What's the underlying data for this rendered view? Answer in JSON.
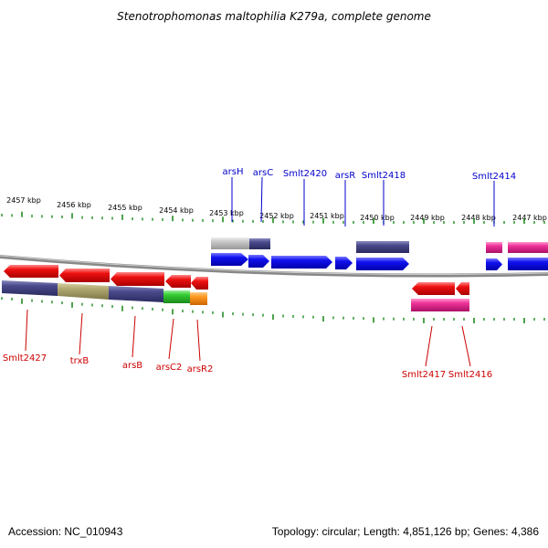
{
  "title": "Stenotrophomonas maltophilia K279a, complete genome",
  "footer": {
    "accession": "Accession: NC_010943",
    "summary": "Topology: circular; Length: 4,851,126 bp; Genes: 4,386"
  },
  "scale_labels": [
    "2457 kbp",
    "2456 kbp",
    "2455 kbp",
    "2454 kbp",
    "2453 kbp",
    "2452 kbp",
    "2451 kbp",
    "2450 kbp",
    "2449 kbp",
    "2448 kbp",
    "2447 kbp"
  ],
  "top_labels": [
    "arsH",
    "arsC",
    "Smlt2420",
    "arsR",
    "Smlt2418",
    "Smlt2414"
  ],
  "bottom_labels": [
    "Smlt2427",
    "trxB",
    "arsB",
    "arsC2",
    "arsR2",
    "Smlt2417",
    "Smlt2416"
  ],
  "colors": {
    "red": "#ee1111",
    "blue": "#1111ee",
    "navy": "#4a4a8c",
    "olive": "#b0a870",
    "gray": "#c8c8c8",
    "green": "#33cc33",
    "orange": "#ff9922",
    "pink": "#ee3399",
    "tick": "#228b22",
    "label_red": "#cc0000",
    "label_blue": "#0000cc"
  }
}
